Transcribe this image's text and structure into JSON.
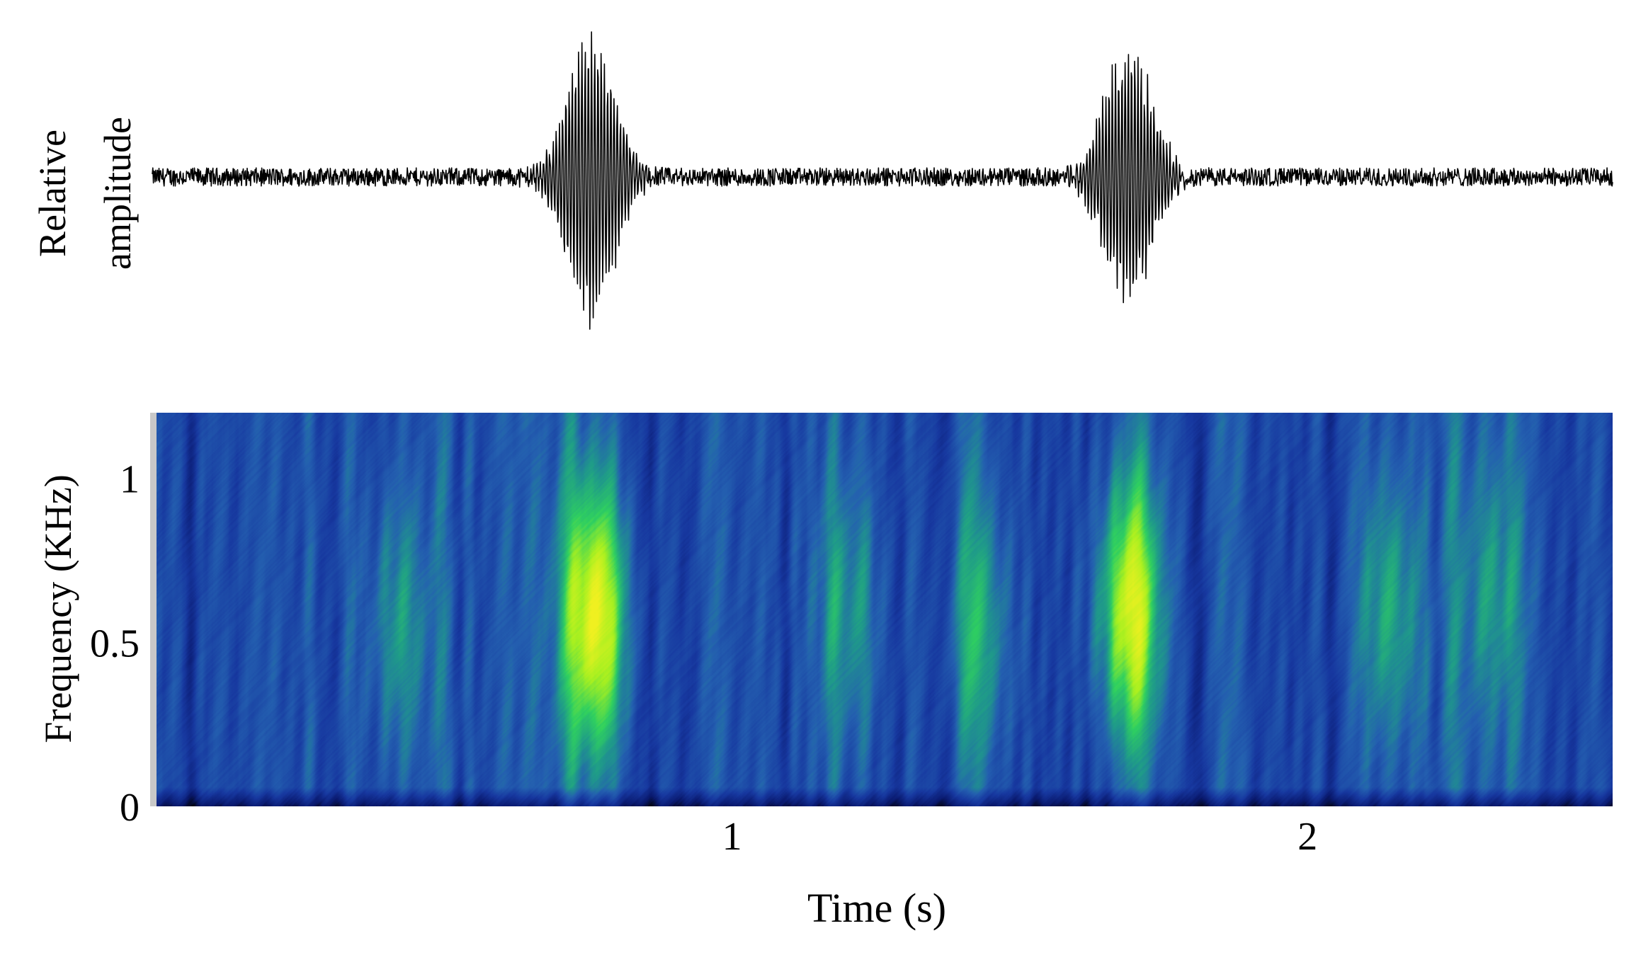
{
  "chart_data": [
    {
      "type": "line",
      "panel": "waveform",
      "ylabel": [
        "Relative",
        "amplitude"
      ],
      "xlim": [
        0,
        2.53
      ],
      "ylim": [
        -1,
        1
      ],
      "baseline_noise_amplitude": 0.06,
      "bursts": [
        {
          "center_time": 0.76,
          "peak_amplitude": 1.0,
          "min_amplitude": -1.0,
          "duration": 0.15
        },
        {
          "center_time": 1.69,
          "peak_amplitude": 0.9,
          "min_amplitude": -0.9,
          "duration": 0.15
        }
      ],
      "color": "#000000"
    },
    {
      "type": "heatmap",
      "panel": "spectrogram",
      "xlabel": "Time (s)",
      "ylabel": "Frequency (KHz)",
      "xlim": [
        0,
        2.53
      ],
      "ylim": [
        0,
        1.2
      ],
      "x_ticks": [
        {
          "value": 1,
          "label": "1"
        },
        {
          "value": 2,
          "label": "2"
        }
      ],
      "y_ticks": [
        {
          "value": 0,
          "label": "0"
        },
        {
          "value": 0.5,
          "label": "0.5"
        },
        {
          "value": 1,
          "label": "1"
        }
      ],
      "colormap": [
        "#000000",
        "#0a1a70",
        "#1738a0",
        "#2460b0",
        "#1f9a8a",
        "#2fd060",
        "#a8f020",
        "#f0f020"
      ],
      "hotspots": [
        {
          "time": 0.76,
          "frequency": 0.58,
          "intensity": 1.0
        },
        {
          "time": 1.69,
          "frequency": 0.6,
          "intensity": 0.92
        },
        {
          "time": 0.42,
          "frequency": 0.55,
          "intensity": 0.35
        },
        {
          "time": 1.2,
          "frequency": 0.6,
          "intensity": 0.35
        },
        {
          "time": 1.43,
          "frequency": 0.55,
          "intensity": 0.38
        },
        {
          "time": 2.14,
          "frequency": 0.6,
          "intensity": 0.4
        },
        {
          "time": 2.32,
          "frequency": 0.65,
          "intensity": 0.3
        }
      ]
    }
  ]
}
